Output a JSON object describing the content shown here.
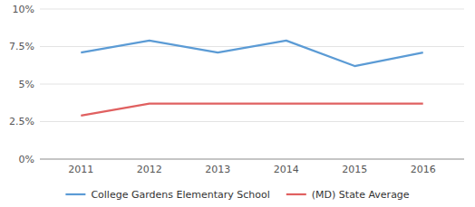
{
  "chart_data": {
    "type": "line",
    "x": [
      2011,
      2012,
      2013,
      2014,
      2015,
      2016
    ],
    "xlim": [
      2010.4,
      2016.6
    ],
    "xticks": [
      2011,
      2012,
      2013,
      2014,
      2015,
      2016
    ],
    "ylim": [
      0,
      10
    ],
    "yticks": [
      {
        "value": 0,
        "label": "0%"
      },
      {
        "value": 2.5,
        "label": "2.5%"
      },
      {
        "value": 5.0,
        "label": "5%"
      },
      {
        "value": 7.5,
        "label": "7.5%"
      },
      {
        "value": 10.0,
        "label": "10%"
      }
    ],
    "series": [
      {
        "name": "College Gardens Elementary School",
        "color": "#5b9bd5",
        "values": [
          7.1,
          7.9,
          7.1,
          7.9,
          6.2,
          7.1
        ]
      },
      {
        "name": "(MD) State Average",
        "color": "#e06060",
        "values": [
          2.9,
          3.7,
          3.7,
          3.7,
          3.7,
          3.7
        ]
      }
    ],
    "grid": true,
    "legend": "bottom"
  }
}
